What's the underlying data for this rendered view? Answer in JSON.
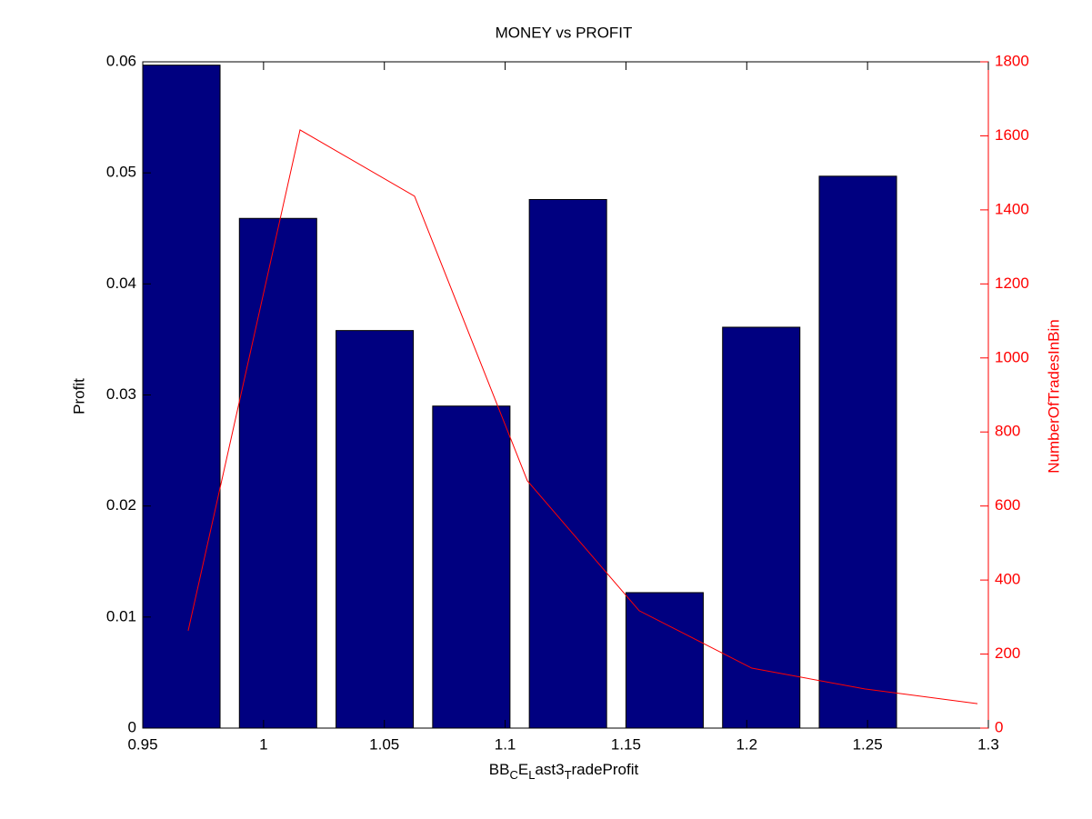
{
  "chart_data": {
    "type": "bar",
    "title": "MONEY vs PROFIT",
    "xlabel": [
      "BB",
      "C",
      "E",
      "L",
      "ast3",
      "T",
      "radeProfit"
    ],
    "xlabel_subscript": [
      false,
      true,
      false,
      true,
      false,
      true,
      false
    ],
    "ylabel": "Profit",
    "y2label": "NumberOfTradesInBin",
    "xlim": [
      0.95,
      1.3
    ],
    "xticks": [
      0.95,
      1,
      1.05,
      1.1,
      1.15,
      1.2,
      1.25,
      1.3
    ],
    "ylim": [
      0,
      0.06
    ],
    "yticks": [
      0,
      0.01,
      0.02,
      0.03,
      0.04,
      0.05,
      0.06
    ],
    "y2lim": [
      0,
      1800
    ],
    "y2ticks": [
      0,
      200,
      400,
      600,
      800,
      1000,
      1200,
      1400,
      1600,
      1800
    ],
    "y2color": "#ff0000",
    "series": [
      {
        "type": "bar",
        "axis": "y",
        "color": "#000080",
        "bar_width": 0.032,
        "x": [
          0.966,
          1.006,
          1.046,
          1.086,
          1.126,
          1.166,
          1.206,
          1.246
        ],
        "values": [
          0.0597,
          0.0459,
          0.0358,
          0.029,
          0.0476,
          0.0122,
          0.0361,
          0.0497
        ]
      },
      {
        "type": "line",
        "axis": "y2",
        "color": "#ff0000",
        "x": [
          0.9688,
          1.0151,
          1.0625,
          1.1092,
          1.1555,
          1.2021,
          1.2488,
          1.2955
        ],
        "values": [
          263,
          1616,
          1437,
          668,
          317,
          162,
          106,
          66
        ]
      }
    ]
  }
}
